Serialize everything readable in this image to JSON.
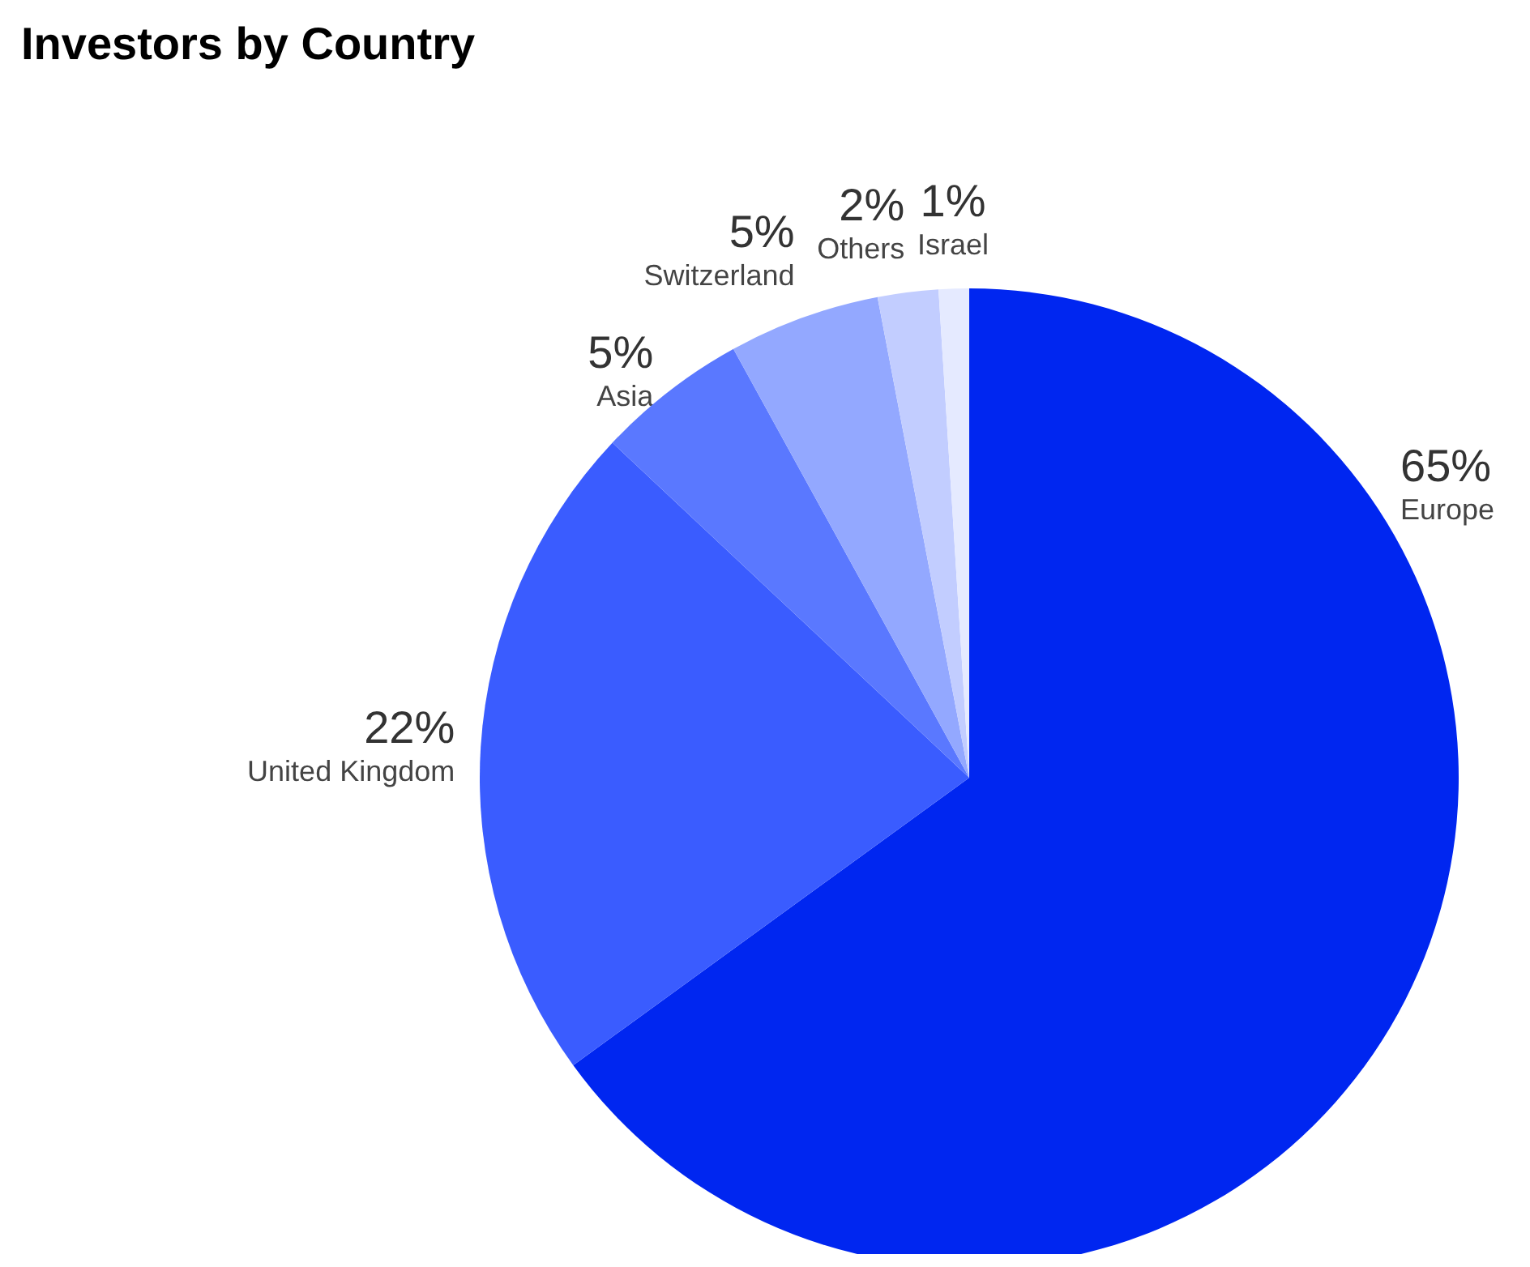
{
  "chart_data": {
    "type": "pie",
    "title": "Investors by Country",
    "categories": [
      "Europe",
      "United Kingdom",
      "Asia",
      "Switzerland",
      "Others",
      "Israel"
    ],
    "values": [
      65,
      22,
      5,
      5,
      2,
      1
    ],
    "value_labels": [
      "65%",
      "22%",
      "5%",
      "5%",
      "2%",
      "1%"
    ],
    "colors": [
      "#0026f0",
      "#3a5cff",
      "#5a78ff",
      "#93a8ff",
      "#c2cdff",
      "#e5eaff"
    ]
  }
}
